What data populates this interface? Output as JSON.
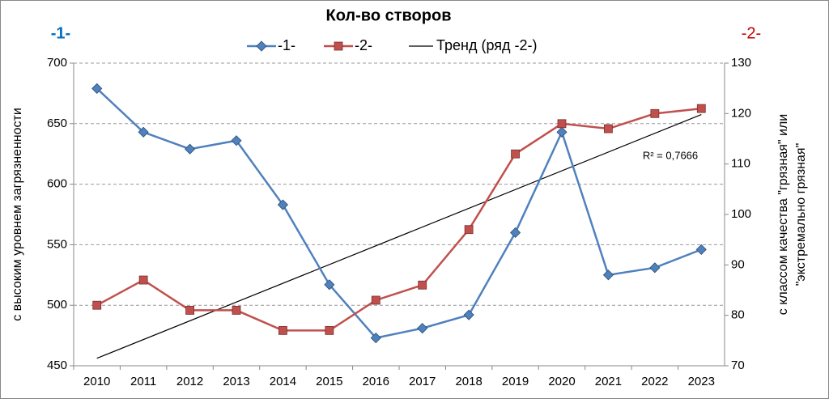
{
  "chart_data": {
    "type": "line",
    "title": "Кол-во створов",
    "left_label": "-1-",
    "right_label": "-2-",
    "y_label": "с высоким уровнем загрязненности",
    "y2_label": [
      "с классом качества \"грязная\" или",
      "\"экстремально грязная\""
    ],
    "categories": [
      "2010",
      "2011",
      "2012",
      "2013",
      "2014",
      "2015",
      "2016",
      "2017",
      "2018",
      "2019",
      "2020",
      "2021",
      "2022",
      "2023"
    ],
    "series": [
      {
        "name": "-1-",
        "color": "#4f81bd",
        "marker": "diamond",
        "values": [
          679,
          643,
          629,
          636,
          583,
          517,
          473,
          481,
          492,
          560,
          643,
          525,
          531,
          546
        ]
      },
      {
        "name": "-2-",
        "color": "#c0504d",
        "marker": "square",
        "axis": "y2",
        "values": [
          82,
          87,
          81,
          81,
          77,
          77,
          83,
          86,
          97,
          112,
          118,
          117,
          120,
          121
        ]
      }
    ],
    "trend": {
      "name": "Тренд (ряд -2-)",
      "color": "#000000",
      "r2_label": "R² = 0,7666"
    },
    "ylim": [
      450,
      700
    ],
    "yticks": [
      450,
      500,
      550,
      600,
      650,
      700
    ],
    "y2lim": [
      70,
      130
    ],
    "y2ticks": [
      70,
      80,
      90,
      100,
      110,
      120,
      130
    ],
    "grid": true
  }
}
